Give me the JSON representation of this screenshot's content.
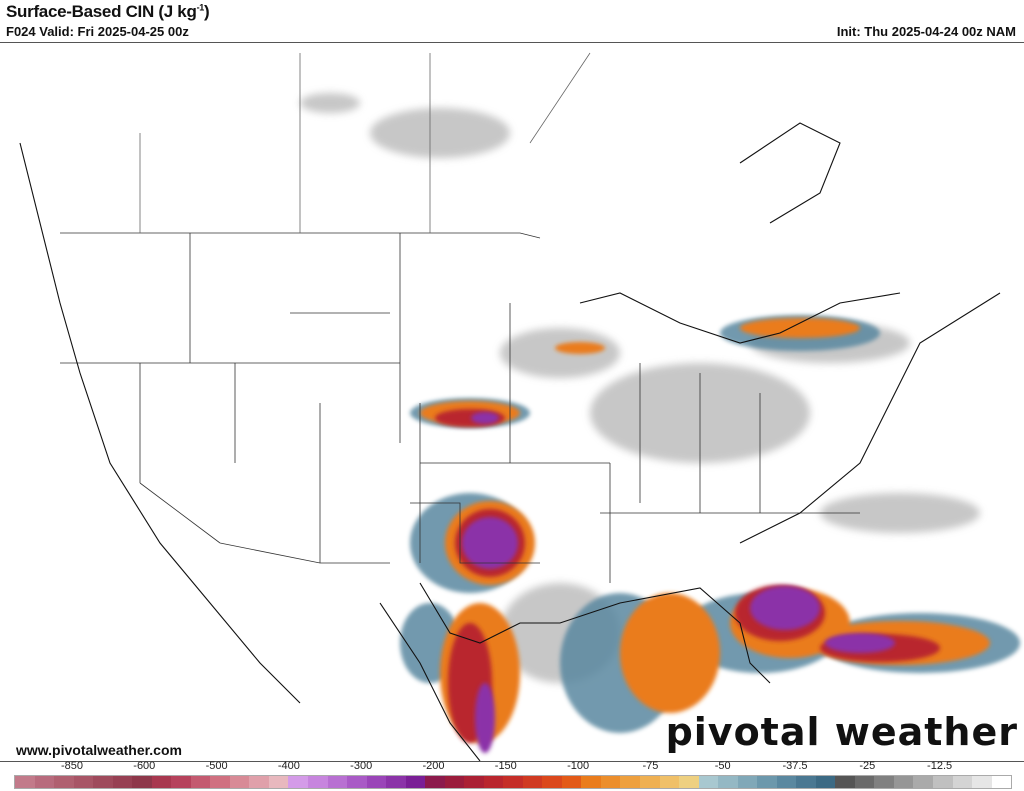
{
  "header": {
    "title": "Surface-Based CIN (J kg",
    "title_sup": "-1",
    "title_end": ")",
    "valid": "F024 Valid: Fri 2025-04-25 00z",
    "init": "Init: Thu 2025-04-24 00z NAM"
  },
  "footer": {
    "url": "www.pivotalweather.com",
    "brand": "pivotal weather"
  },
  "colorbar": {
    "ticks": [
      "-850",
      "-600",
      "-500",
      "-400",
      "-300",
      "-200",
      "-150",
      "-100",
      "-75",
      "-50",
      "-37.5",
      "-25",
      "-12.5"
    ],
    "colors": [
      "#c27a8a",
      "#b86b7d",
      "#b06070",
      "#a85566",
      "#9f4a5c",
      "#974053",
      "#8e374a",
      "#a8384f",
      "#b6425c",
      "#c45a70",
      "#d07080",
      "#d88a96",
      "#e0a0aa",
      "#e8b8be",
      "#d49be8",
      "#c785de",
      "#b870d2",
      "#a95ac6",
      "#9a45b8",
      "#8b33a8",
      "#7a1f96",
      "#8c1a4c",
      "#9b1c3c",
      "#ab2034",
      "#b9262e",
      "#c52e28",
      "#d03a22",
      "#db481c",
      "#e35a18",
      "#ea7c1c",
      "#ec8e2c",
      "#eea03e",
      "#efb052",
      "#f0c068",
      "#eed080",
      "#a8c8d0",
      "#94b8c4",
      "#80a8b8",
      "#6c98ac",
      "#5a88a0",
      "#4a7892",
      "#3c6a84",
      "#555555",
      "#6a6a6a",
      "#808080",
      "#969696",
      "#aaaaaa",
      "#c0c0c0",
      "#d4d4d4",
      "#e6e6e6",
      "#ffffff"
    ]
  }
}
